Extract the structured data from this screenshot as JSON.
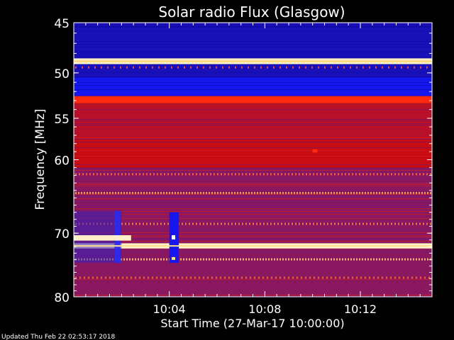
{
  "chart_data": {
    "type": "heatmap",
    "title": "Solar radio Flux (Glasgow)",
    "xlabel": "Start Time (27-Mar-17 10:00:00)",
    "ylabel": "Frequency [MHz]",
    "x_range_minutes": [
      0,
      15
    ],
    "x_ticks": [
      {
        "minute": 4,
        "label": "10:04"
      },
      {
        "minute": 8,
        "label": "10:08"
      },
      {
        "minute": 12,
        "label": "10:12"
      }
    ],
    "y_range_mhz": [
      45,
      80
    ],
    "y_scale": "log",
    "y_ticks": [
      {
        "mhz": 45,
        "label": "45"
      },
      {
        "mhz": 50,
        "label": "50"
      },
      {
        "mhz": 55,
        "label": "55"
      },
      {
        "mhz": 60,
        "label": "60"
      },
      {
        "mhz": 70,
        "label": "70"
      },
      {
        "mhz": 80,
        "label": "80"
      }
    ],
    "frequency_bands": [
      {
        "from_mhz": 45.0,
        "to_mhz": 45.4,
        "level": "low"
      },
      {
        "from_mhz": 45.4,
        "to_mhz": 48.5,
        "level": "low"
      },
      {
        "from_mhz": 48.5,
        "to_mhz": 49.1,
        "level": "very-high"
      },
      {
        "from_mhz": 49.1,
        "to_mhz": 50.5,
        "level": "low"
      },
      {
        "from_mhz": 50.5,
        "to_mhz": 52.5,
        "level": "very-low"
      },
      {
        "from_mhz": 52.5,
        "to_mhz": 53.3,
        "level": "high"
      },
      {
        "from_mhz": 53.3,
        "to_mhz": 57.5,
        "level": "medium"
      },
      {
        "from_mhz": 57.5,
        "to_mhz": 61.0,
        "level": "medium-high"
      },
      {
        "from_mhz": 61.0,
        "to_mhz": 66.5,
        "level": "medium-low"
      },
      {
        "from_mhz": 66.5,
        "to_mhz": 71.5,
        "level": "medium-low"
      },
      {
        "from_mhz": 71.5,
        "to_mhz": 72.3,
        "level": "very-high"
      },
      {
        "from_mhz": 72.3,
        "to_mhz": 80.0,
        "level": "medium-low"
      }
    ],
    "bursts": [
      {
        "minute_from": 0.0,
        "minute_to": 2.4,
        "from_mhz": 70.3,
        "to_mhz": 71.1,
        "level": "very-high"
      },
      {
        "minute_from": 4.0,
        "minute_to": 4.4,
        "from_mhz": 67.0,
        "to_mhz": 74.5,
        "level": "very-low"
      },
      {
        "minute_from": 10.0,
        "minute_to": 10.2,
        "from_mhz": 58.7,
        "to_mhz": 59.1,
        "level": "high"
      }
    ],
    "grid": false,
    "colormap": [
      "#000080",
      "#1010ff",
      "#6a20c0",
      "#a01040",
      "#d01010",
      "#ff4020",
      "#ffd070",
      "#ffffff"
    ]
  },
  "footer": {
    "updated_text": "Updated Thu Feb 22 02:53:17 2018"
  }
}
